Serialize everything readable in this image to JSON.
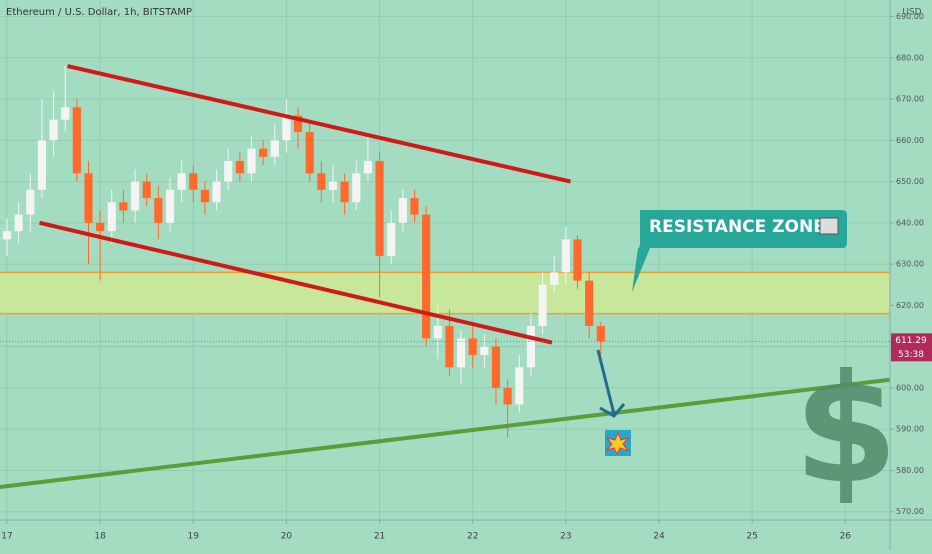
{
  "chart_data": {
    "type": "candlestick",
    "title": "Ethereum / U.S. Dollar, 1h, BITSTAMP",
    "currency": "USD",
    "x": [
      17,
      17.125,
      17.25,
      17.375,
      17.5,
      17.625,
      17.75,
      17.875,
      18,
      18.125,
      18.25,
      18.375,
      18.5,
      18.625,
      18.75,
      18.875,
      19,
      19.125,
      19.25,
      19.375,
      19.5,
      19.625,
      19.75,
      19.875,
      20,
      20.125,
      20.25,
      20.375,
      20.5,
      20.625,
      20.75,
      20.875,
      21,
      21.125,
      21.25,
      21.375,
      21.5,
      21.625,
      21.75,
      21.875,
      22,
      22.125,
      22.25,
      22.375,
      22.5,
      22.625,
      22.75,
      22.875,
      23,
      23.125,
      23.25,
      23.375
    ],
    "open": [
      636,
      638,
      642,
      648,
      660,
      665,
      668,
      652,
      640,
      638,
      645,
      643,
      650,
      646,
      640,
      648,
      652,
      648,
      645,
      650,
      655,
      652,
      658,
      656,
      660,
      666,
      662,
      652,
      648,
      650,
      645,
      652,
      655,
      632,
      640,
      646,
      642,
      612,
      615,
      605,
      612,
      608,
      610,
      600,
      596,
      605,
      615,
      625,
      628,
      636,
      626,
      615
    ],
    "high": [
      641,
      645,
      652,
      670,
      672,
      678,
      670,
      655,
      643,
      648,
      648,
      653,
      652,
      649,
      651,
      655,
      654,
      650,
      653,
      658,
      657,
      661,
      660,
      664,
      670,
      668,
      664,
      655,
      654,
      652,
      655,
      662,
      657,
      643,
      648,
      648,
      644,
      620,
      619,
      614,
      615,
      613,
      612,
      602,
      608,
      618,
      628,
      632,
      639,
      637,
      628,
      616
    ],
    "low": [
      632,
      635,
      638,
      646,
      656,
      662,
      650,
      630,
      626,
      635,
      640,
      640,
      644,
      636,
      638,
      645,
      645,
      642,
      643,
      648,
      650,
      650,
      654,
      654,
      657,
      658,
      650,
      645,
      645,
      642,
      643,
      650,
      622,
      630,
      638,
      640,
      610,
      607,
      603,
      601,
      605,
      605,
      596,
      588,
      594,
      603,
      613,
      623,
      625,
      624,
      612,
      608
    ],
    "close": [
      638,
      642,
      648,
      660,
      665,
      668,
      652,
      640,
      638,
      645,
      643,
      650,
      646,
      640,
      648,
      652,
      648,
      645,
      650,
      655,
      652,
      658,
      656,
      660,
      666,
      662,
      652,
      648,
      650,
      645,
      652,
      655,
      632,
      640,
      646,
      642,
      612,
      615,
      605,
      612,
      608,
      610,
      600,
      596,
      605,
      615,
      625,
      628,
      636,
      626,
      615,
      611.29
    ],
    "up_color": "#f4f4f4",
    "down_color": "#ff6a2c",
    "last_price": 611.29,
    "countdown": "53:38",
    "xlim": [
      16.925,
      26.48
    ],
    "xticks": [
      17,
      18,
      19,
      20,
      21,
      22,
      23,
      24,
      25,
      26
    ],
    "ylim": [
      568,
      694
    ],
    "yticks": [
      {
        "value": 570,
        "label": "570.00"
      },
      {
        "value": 580,
        "label": "580.00"
      },
      {
        "value": 590,
        "label": "590.00"
      },
      {
        "value": 600,
        "label": "600.00"
      },
      {
        "value": 610,
        "label": "610.00"
      },
      {
        "value": 620,
        "label": "620.00"
      },
      {
        "value": 630,
        "label": "630.00"
      },
      {
        "value": 640,
        "label": "640.00"
      },
      {
        "value": 650,
        "label": "650.00"
      },
      {
        "value": 660,
        "label": "660.00"
      },
      {
        "value": 670,
        "label": "670.00"
      },
      {
        "value": 680,
        "label": "680.00"
      },
      {
        "value": 690,
        "label": "690.00"
      }
    ],
    "zone": {
      "low": 618,
      "high": 628,
      "color": "#c8e79a",
      "label": "RESISTANCE ZONE"
    },
    "trendlines": [
      {
        "color": "#d01a1a",
        "points": [
          [
            17.65,
            678
          ],
          [
            23.05,
            650
          ]
        ]
      },
      {
        "color": "#d01a1a",
        "points": [
          [
            17.35,
            640
          ],
          [
            22.85,
            611
          ]
        ]
      },
      {
        "color": "#5a9e3a",
        "points": [
          [
            16.925,
            576
          ],
          [
            26.48,
            602
          ]
        ]
      }
    ],
    "symbol": "$"
  }
}
